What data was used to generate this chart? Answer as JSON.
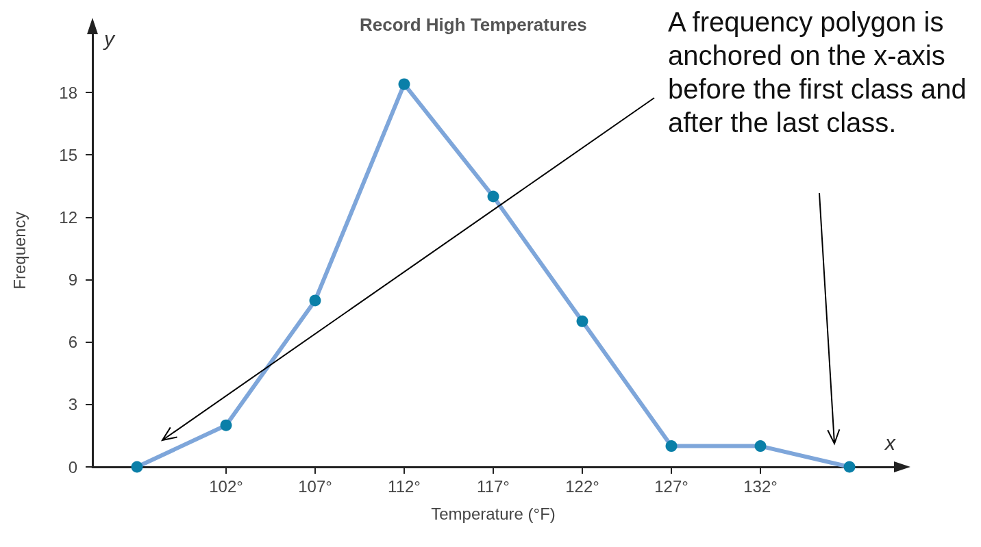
{
  "chart_data": {
    "type": "line",
    "title": "Record High Temperatures",
    "xlabel": "Temperature (°F)",
    "ylabel": "Frequency",
    "x": [
      97,
      102,
      107,
      112,
      117,
      122,
      127,
      132,
      137
    ],
    "series": [
      {
        "color": "#7ea6da",
        "colors": [
          "#0a7fa8",
          "#0a7fa8",
          "#0a7fa8",
          "#0a7fa8",
          "#0a7fa8",
          "#0a7fa8",
          "#0a7fa8",
          "#0a7fa8",
          "#0a7fa8"
        ],
        "values": [
          0,
          2,
          8,
          18.4,
          13,
          7,
          1,
          1,
          0
        ]
      }
    ],
    "xlim": [
      94.5,
      139.5
    ],
    "xticks": [
      {
        "value": 102,
        "label": "102°"
      },
      {
        "value": 107,
        "label": "107°"
      },
      {
        "value": 112,
        "label": "112°"
      },
      {
        "value": 117,
        "label": "117°"
      },
      {
        "value": 122,
        "label": "122°"
      },
      {
        "value": 127,
        "label": "127°"
      },
      {
        "value": 132,
        "label": "132°"
      }
    ],
    "ylim": [
      0,
      20.8
    ],
    "yticks": [
      0,
      3,
      6,
      9,
      12,
      15,
      18
    ],
    "marker": "circle",
    "line_style": "solid",
    "grid": false,
    "annotations": [
      "y",
      "x",
      "A frequency polygon is anchored on the x-axis before the first class and after the last class."
    ]
  }
}
